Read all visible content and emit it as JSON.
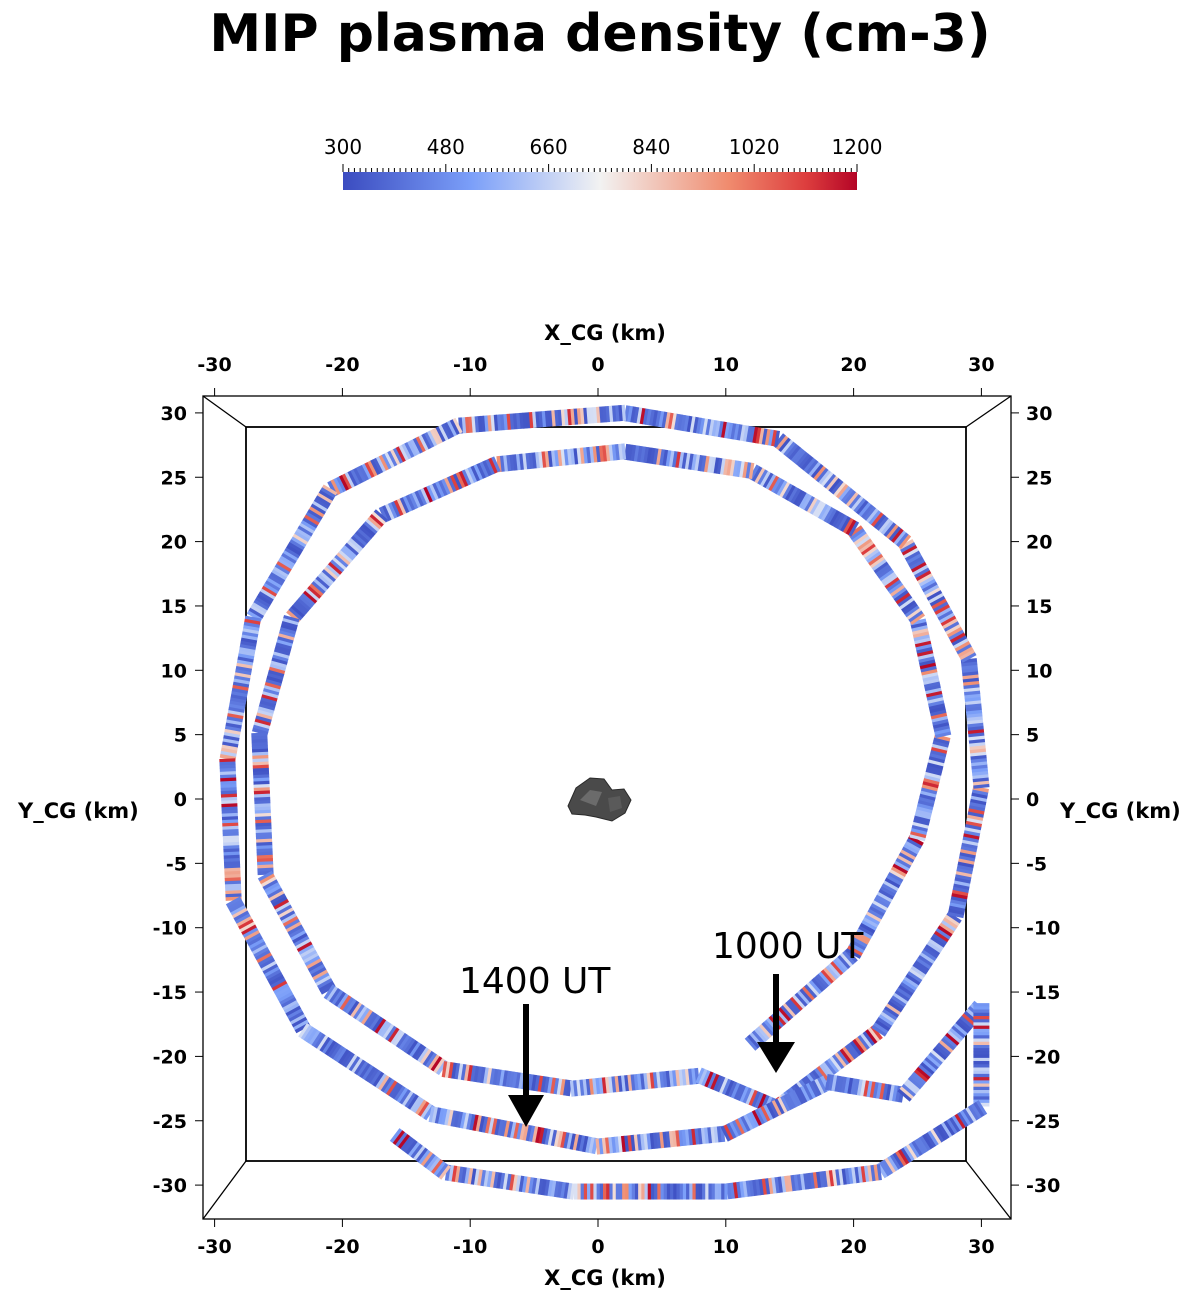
{
  "title": "MIP plasma density (cm-3)",
  "chart_data": {
    "type": "scatter",
    "title": "MIP plasma density (cm-3)",
    "xlabel": "X_CG (km)",
    "ylabel": "Y_CG (km)",
    "xlim": [
      -30,
      30
    ],
    "ylim": [
      -30,
      30
    ],
    "xticks": [
      "-30",
      "-20",
      "-10",
      "0",
      "10",
      "20",
      "30"
    ],
    "yticks": [
      "30",
      "25",
      "20",
      "15",
      "10",
      "5",
      "0",
      "-5",
      "-10",
      "-15",
      "-20",
      "-25",
      "-30"
    ],
    "colorbar": {
      "label": "MIP plasma density (cm-3)",
      "range": [
        300,
        1200
      ],
      "ticks": [
        "300",
        "480",
        "660",
        "840",
        "1020",
        "1200"
      ],
      "colormap": "cool-to-warm",
      "low_color": "#3b4cc0",
      "mid_color": "#f2f2f2",
      "high_color": "#b40426"
    },
    "trajectory": {
      "description_points_km": [
        [
          12,
          -19
        ],
        [
          20,
          -12
        ],
        [
          25,
          -3
        ],
        [
          27,
          5
        ],
        [
          25,
          14
        ],
        [
          20,
          21
        ],
        [
          12,
          25.5
        ],
        [
          2,
          27
        ],
        [
          -8,
          26
        ],
        [
          -17,
          22
        ],
        [
          -24,
          14
        ],
        [
          -26.5,
          5
        ],
        [
          -26,
          -6
        ],
        [
          -21,
          -15
        ],
        [
          -12,
          -21
        ],
        [
          -2,
          -22.5
        ],
        [
          8,
          -21.5
        ],
        [
          14,
          -24
        ],
        [
          22,
          -18
        ],
        [
          28,
          -9
        ],
        [
          30,
          1
        ],
        [
          29,
          11
        ],
        [
          24,
          20
        ],
        [
          14,
          28
        ],
        [
          2,
          30
        ],
        [
          -11,
          29
        ],
        [
          -21,
          24
        ],
        [
          -27,
          14
        ],
        [
          -29,
          3
        ],
        [
          -28.5,
          -8
        ],
        [
          -23,
          -18
        ],
        [
          -13,
          -24.5
        ],
        [
          0,
          -27
        ],
        [
          10,
          -26
        ],
        [
          18,
          -22
        ],
        [
          24,
          -23
        ],
        [
          30,
          -16
        ],
        [
          30,
          -24
        ],
        [
          22,
          -29
        ],
        [
          10,
          -30.5
        ],
        [
          -2,
          -30.5
        ],
        [
          -12,
          -29
        ],
        [
          -16,
          -26
        ]
      ],
      "arrow_1000_ut_tip_km": [
        13.8,
        -21.3
      ],
      "arrow_1400_ut_tip_km": [
        -5.6,
        -25.6
      ]
    },
    "annotations": [
      "1000 UT",
      "1400 UT"
    ],
    "grid": false,
    "legend": "colorbar-top"
  }
}
